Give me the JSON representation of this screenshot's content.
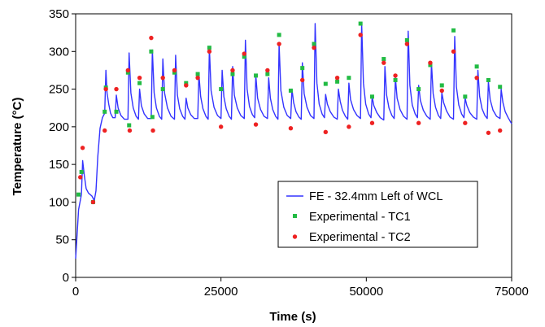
{
  "chart_data": {
    "type": "line",
    "title": "",
    "xlabel": "Time (s)",
    "ylabel": "Temperature (°C)",
    "xlim": [
      0,
      75000
    ],
    "ylim": [
      0,
      350
    ],
    "xticks": [
      0,
      25000,
      50000,
      75000
    ],
    "yticks": [
      0,
      50,
      100,
      150,
      200,
      250,
      300,
      350
    ],
    "grid": false,
    "legend_position": "bottom-right",
    "line_series": {
      "name": "FE - 32.4mm Left of WCL",
      "color": "#3333ff",
      "x": [
        0,
        500,
        1000,
        1200,
        1500,
        1800,
        2200,
        2800,
        3200,
        3500,
        3800,
        4200,
        4600,
        5000,
        5200,
        5400,
        5700,
        6000,
        6400,
        6800,
        7000,
        7300,
        7800,
        8400,
        9000,
        9200,
        9500,
        9900,
        10400,
        10800,
        11000,
        11300,
        11800,
        12400,
        13000,
        13200,
        13500,
        13900,
        14400,
        14800,
        15000,
        15300,
        15800,
        16400,
        17000,
        17200,
        17500,
        17900,
        18400,
        18800,
        19000,
        19300,
        19800,
        20400,
        21000,
        21200,
        21500,
        21900,
        22400,
        22800,
        23000,
        23300,
        23800,
        24400,
        25000,
        25200,
        25500,
        25900,
        26400,
        26800,
        27000,
        27300,
        27800,
        28400,
        29000,
        29200,
        29500,
        29900,
        30400,
        30800,
        31000,
        31300,
        31800,
        32400,
        33000,
        33200,
        33500,
        33900,
        34400,
        34800,
        35000,
        35300,
        35800,
        36400,
        37000,
        37200,
        37500,
        37900,
        38400,
        38800,
        39000,
        39300,
        39800,
        40400,
        41000,
        41200,
        41500,
        41900,
        42400,
        42800,
        43000,
        43300,
        43800,
        44400,
        45000,
        45200,
        45500,
        45900,
        46400,
        46800,
        47000,
        47300,
        47800,
        48400,
        49000,
        49200,
        49500,
        49900,
        50400,
        50800,
        51000,
        51300,
        51800,
        52400,
        53000,
        53200,
        53500,
        53900,
        54400,
        54800,
        55000,
        55300,
        55800,
        56400,
        57000,
        57200,
        57500,
        57900,
        58400,
        58800,
        59000,
        59300,
        59800,
        60400,
        61000,
        61200,
        61500,
        61900,
        62400,
        62800,
        63000,
        63300,
        63800,
        64400,
        65000,
        65200,
        65500,
        65900,
        66400,
        66800,
        67000,
        67300,
        67800,
        68400,
        69000,
        69200,
        69500,
        69900,
        70400,
        70800,
        71000,
        71300,
        71800,
        72400,
        73000,
        73200,
        73500,
        73900,
        74400,
        75000
      ],
      "y": [
        25,
        90,
        110,
        155,
        135,
        118,
        112,
        108,
        102,
        115,
        160,
        198,
        212,
        218,
        275,
        245,
        230,
        218,
        212,
        212,
        242,
        225,
        215,
        210,
        210,
        298,
        245,
        225,
        214,
        210,
        250,
        228,
        217,
        211,
        211,
        302,
        245,
        225,
        214,
        210,
        290,
        245,
        225,
        214,
        210,
        295,
        242,
        224,
        214,
        210,
        238,
        225,
        216,
        211,
        211,
        270,
        240,
        224,
        214,
        210,
        305,
        248,
        226,
        215,
        211,
        275,
        240,
        224,
        214,
        210,
        280,
        242,
        225,
        215,
        211,
        315,
        250,
        227,
        216,
        212,
        268,
        238,
        223,
        214,
        211,
        265,
        238,
        223,
        214,
        210,
        310,
        248,
        226,
        215,
        211,
        250,
        232,
        220,
        213,
        210,
        285,
        244,
        226,
        215,
        211,
        337,
        258,
        230,
        217,
        212,
        243,
        230,
        220,
        213,
        210,
        250,
        234,
        222,
        214,
        210,
        258,
        236,
        223,
        215,
        211,
        337,
        258,
        230,
        217,
        212,
        240,
        228,
        219,
        212,
        209,
        280,
        242,
        225,
        215,
        211,
        265,
        238,
        223,
        214,
        210,
        327,
        255,
        229,
        217,
        212,
        255,
        235,
        222,
        214,
        210,
        285,
        244,
        226,
        215,
        211,
        245,
        232,
        221,
        213,
        210,
        320,
        253,
        229,
        217,
        212,
        238,
        228,
        219,
        213,
        210,
        275,
        240,
        224,
        215,
        211,
        260,
        236,
        222,
        214,
        211,
        250,
        232,
        220,
        212,
        204
      ]
    },
    "scatter_series": [
      {
        "name": "Experimental - TC1",
        "color": "#22bb44",
        "x": [
          500,
          1000,
          3000,
          5000,
          5200,
          7000,
          9000,
          9200,
          11000,
          13000,
          13200,
          15000,
          17000,
          19000,
          21000,
          23000,
          25000,
          27000,
          29000,
          31000,
          33000,
          35000,
          37000,
          39000,
          41000,
          43000,
          45000,
          47000,
          49000,
          51000,
          53000,
          55000,
          57000,
          59000,
          61000,
          63000,
          65000,
          67000,
          69000,
          71000,
          73000
        ],
        "y": [
          110,
          140,
          100,
          220,
          252,
          220,
          272,
          202,
          258,
          300,
          213,
          250,
          272,
          258,
          270,
          305,
          250,
          270,
          293,
          268,
          270,
          322,
          248,
          278,
          310,
          257,
          260,
          265,
          337,
          240,
          290,
          262,
          315,
          250,
          282,
          255,
          328,
          240,
          280,
          262,
          253
        ]
      },
      {
        "name": "Experimental - TC2",
        "color": "#ee2222",
        "x": [
          800,
          1200,
          3000,
          5000,
          5200,
          7000,
          9000,
          9300,
          11000,
          13000,
          13300,
          15000,
          17000,
          19000,
          21000,
          23000,
          25000,
          27000,
          29000,
          31000,
          33000,
          35000,
          37000,
          39000,
          41000,
          43000,
          45000,
          47000,
          49000,
          51000,
          53000,
          55000,
          57000,
          59000,
          61000,
          63000,
          65000,
          67000,
          69000,
          71000,
          73000
        ],
        "y": [
          133,
          172,
          100,
          195,
          250,
          250,
          275,
          195,
          265,
          318,
          195,
          265,
          275,
          255,
          265,
          300,
          200,
          275,
          297,
          203,
          275,
          310,
          198,
          262,
          305,
          193,
          265,
          200,
          322,
          205,
          285,
          268,
          310,
          205,
          285,
          248,
          300,
          205,
          265,
          192,
          195
        ]
      }
    ],
    "legend": [
      {
        "label": "FE - 32.4mm Left of WCL",
        "kind": "line",
        "color": "#3333ff"
      },
      {
        "label": "Experimental - TC1",
        "kind": "marker",
        "color": "#22bb44"
      },
      {
        "label": "Experimental - TC2",
        "kind": "marker",
        "color": "#ee2222"
      }
    ]
  }
}
